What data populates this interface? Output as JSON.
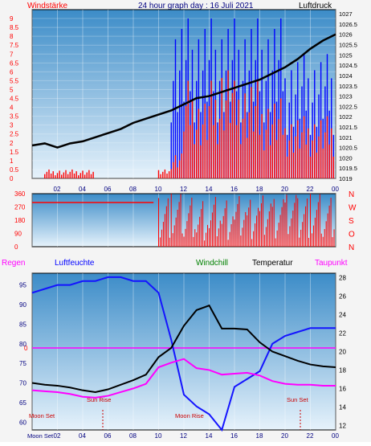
{
  "header": {
    "left_label": "Windstärke",
    "title": "24 hour graph day : 16 Juli 2021",
    "right_label": "Luftdruck"
  },
  "legend": {
    "regen": "Regen",
    "luftfeuchte": "Luftfeuchte",
    "windchill": "Windchill",
    "temperatur": "Temperatur",
    "taupunkt": "Taupunkt"
  },
  "colors": {
    "plot_bg_top": "#3c8cc8",
    "plot_bg_bottom": "#e6f2fb",
    "wind_bars": "#ff0000",
    "gust_bars": "#0000ff",
    "pressure": "#000000",
    "humidity": "#1414ff",
    "temperature": "#000000",
    "dewpoint": "#ff00ff",
    "sun_moon": "#cc0000",
    "axis_left": "#ff0000",
    "axis_time": "#000080"
  },
  "chart_data": [
    {
      "type": "bar",
      "name": "wind-and-pressure",
      "xlabel": "",
      "ylabel": "Windstärke",
      "y2label": "Luftdruck",
      "x_ticks": [
        "02",
        "04",
        "06",
        "08",
        "10",
        "12",
        "14",
        "16",
        "18",
        "20",
        "22",
        "00"
      ],
      "y_ticks": [
        "0",
        "0.5",
        "1",
        "1.5",
        "2",
        "2.5",
        "3",
        "3.5",
        "4",
        "4.5",
        "5",
        "5.5",
        "6",
        "6.5",
        "7",
        "7.5",
        "8",
        "8.5",
        "9"
      ],
      "y2_ticks": [
        "1019",
        "1019.5",
        "1020",
        "1020.5",
        "1021",
        "1021.5",
        "1022",
        "1022.5",
        "1023",
        "1023.5",
        "1024",
        "1024.5",
        "1025",
        "1025.5",
        "1026",
        "1026.5",
        "1027"
      ],
      "ylim": [
        0,
        9.5
      ],
      "y2lim": [
        1019,
        1027.2
      ],
      "grid": true,
      "pressure": {
        "x": [
          0,
          1,
          2,
          3,
          4,
          5,
          6,
          7,
          8,
          9,
          10,
          11,
          12,
          13,
          14,
          15,
          16,
          17,
          18,
          19,
          20,
          21,
          22,
          23,
          24
        ],
        "y": [
          1020.6,
          1020.7,
          1020.5,
          1020.7,
          1020.8,
          1021.0,
          1021.2,
          1021.4,
          1021.7,
          1021.9,
          1022.1,
          1022.3,
          1022.6,
          1022.9,
          1023.0,
          1023.2,
          1023.4,
          1023.6,
          1023.8,
          1024.1,
          1024.4,
          1024.8,
          1025.3,
          1025.7,
          1026.0
        ]
      },
      "wind": {
        "x": [
          0,
          1,
          2,
          3,
          4,
          5,
          6,
          7,
          8,
          9,
          10,
          11,
          12,
          13,
          14,
          15,
          16,
          17,
          18,
          19,
          20,
          21,
          22,
          23,
          24
        ],
        "y": [
          0,
          0.5,
          0.5,
          0.5,
          0.5,
          0,
          0,
          0,
          0,
          0,
          0.5,
          1.5,
          5.5,
          4.5,
          5.5,
          6.5,
          5.5,
          5.5,
          4.5,
          4.5,
          3.5,
          3.5,
          3.5,
          3.5,
          2
        ]
      },
      "gust": {
        "x": [
          0,
          1,
          2,
          3,
          4,
          5,
          6,
          7,
          8,
          9,
          10,
          11,
          12,
          13,
          14,
          15,
          16,
          17,
          18,
          19,
          20,
          21,
          22,
          23,
          24
        ],
        "y": [
          0,
          0,
          0,
          0,
          0,
          0,
          0,
          0,
          0,
          0,
          0,
          9,
          9,
          9,
          9,
          9,
          9,
          9,
          9,
          9,
          7,
          7,
          7,
          7,
          3
        ]
      }
    },
    {
      "type": "bar",
      "name": "wind-direction",
      "y_ticks": [
        "0",
        "90",
        "180",
        "270",
        "360"
      ],
      "y2_ticks": [
        "N",
        "W",
        "S",
        "O",
        "N"
      ],
      "ylim": [
        0,
        360
      ],
      "direction": {
        "x": [
          0,
          1,
          2,
          3,
          4,
          5,
          6,
          7,
          8,
          9,
          10,
          11,
          12,
          13,
          14,
          15,
          16,
          17,
          18,
          19,
          20,
          21,
          22,
          23,
          24
        ],
        "y": [
          300,
          300,
          300,
          300,
          300,
          300,
          300,
          300,
          300,
          300,
          300,
          180,
          200,
          180,
          200,
          180,
          200,
          190,
          180,
          190,
          200,
          180,
          190,
          200,
          200
        ]
      }
    },
    {
      "type": "line",
      "name": "temperature-humidity",
      "xlabel": "",
      "ylabel": "Luftfeuchte",
      "y2label": "Temperatur",
      "x_ticks": [
        "02",
        "04",
        "06",
        "08",
        "10",
        "12",
        "14",
        "16",
        "18",
        "20",
        "22",
        "00"
      ],
      "y_ticks": [
        "60",
        "65",
        "70",
        "75",
        "80",
        "85",
        "90",
        "95"
      ],
      "y2_ticks": [
        "12",
        "14",
        "16",
        "18",
        "20",
        "22",
        "24",
        "26",
        "28"
      ],
      "regen_value": "0",
      "ylim": [
        58,
        98
      ],
      "y2lim": [
        11.5,
        28.5
      ],
      "series": [
        {
          "name": "Luftfeuchte",
          "x": [
            0,
            1,
            2,
            3,
            4,
            5,
            6,
            7,
            8,
            9,
            10,
            11,
            12,
            13,
            14,
            15,
            16,
            17,
            18,
            19,
            20,
            21,
            22,
            23,
            24
          ],
          "values": [
            93,
            94,
            95,
            95,
            96,
            96,
            97,
            97,
            96,
            96,
            93,
            81,
            67,
            64,
            62,
            58,
            69,
            71,
            73,
            80,
            82,
            83,
            84,
            84,
            84
          ]
        },
        {
          "name": "Temperatur",
          "x": [
            0,
            1,
            2,
            3,
            4,
            5,
            6,
            7,
            8,
            9,
            10,
            11,
            12,
            13,
            14,
            15,
            16,
            17,
            18,
            19,
            20,
            21,
            22,
            23,
            24
          ],
          "values": [
            16.6,
            16.4,
            16.3,
            16.1,
            15.8,
            15.6,
            15.9,
            16.4,
            16.9,
            17.5,
            19.4,
            20.4,
            22.8,
            24.5,
            25.0,
            22.5,
            22.5,
            22.4,
            21.0,
            20.0,
            19.5,
            19.0,
            18.6,
            18.4,
            18.3
          ]
        },
        {
          "name": "Taupunkt",
          "x": [
            0,
            1,
            2,
            3,
            4,
            5,
            6,
            7,
            8,
            9,
            10,
            11,
            12,
            13,
            14,
            15,
            16,
            17,
            18,
            19,
            20,
            21,
            22,
            23,
            24
          ],
          "values": [
            15.8,
            15.7,
            15.6,
            15.4,
            15.1,
            15.0,
            15.2,
            15.6,
            16.0,
            16.5,
            18.3,
            18.8,
            19.2,
            18.2,
            18.0,
            17.5,
            17.6,
            17.7,
            17.4,
            16.8,
            16.5,
            16.4,
            16.4,
            16.3,
            16.3
          ]
        }
      ],
      "annotations": {
        "moon_set_left": "Moon Set",
        "sun_rise": "Sun Rise",
        "moon_rise": "Moon Rise",
        "sun_set": "Sun Set",
        "moon_set_axis": "Moon Set"
      }
    }
  ]
}
